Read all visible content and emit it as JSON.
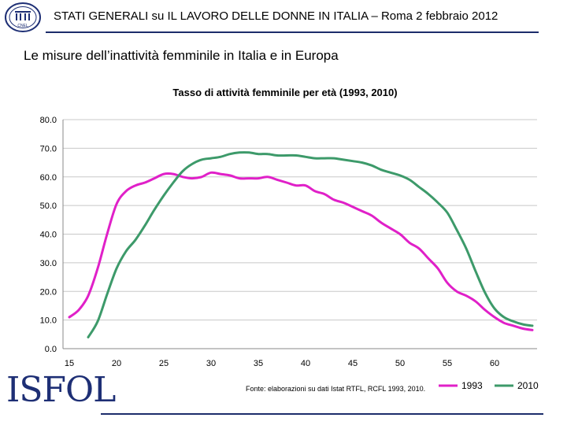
{
  "header": {
    "title": "STATI GENERALI su IL LAVORO DELLE DONNE IN ITALIA – Roma 2 febbraio 2012",
    "logo_text": "CNEL"
  },
  "subtitle": "Le misure dell’inattività femminile in Italia e in Europa",
  "footer": {
    "logo_text": "ISFOL",
    "brand_color": "#1e2f75"
  },
  "chart_data": {
    "type": "line",
    "title": "Tasso di attività femminile per età (1993, 2010)",
    "xlabel": "",
    "ylabel": "",
    "xlim": [
      15,
      64
    ],
    "ylim": [
      0,
      80
    ],
    "x_ticks": [
      15,
      20,
      25,
      30,
      35,
      40,
      45,
      50,
      55,
      60
    ],
    "y_ticks": [
      "0.0",
      "10.0",
      "20.0",
      "30.0",
      "40.0",
      "50.0",
      "60.0",
      "70.0",
      "80.0"
    ],
    "grid": "horizontal",
    "source": "Fonte: elaborazioni su dati Istat RTFL, RCFL 1993, 2010.",
    "legend_position": "bottom-right",
    "series": [
      {
        "name": "1993",
        "color": "#e020c8",
        "x": [
          15,
          16,
          17,
          18,
          19,
          20,
          21,
          22,
          23,
          24,
          25,
          26,
          27,
          28,
          29,
          30,
          31,
          32,
          33,
          34,
          35,
          36,
          37,
          38,
          39,
          40,
          41,
          42,
          43,
          44,
          45,
          46,
          47,
          48,
          49,
          50,
          51,
          52,
          53,
          54,
          55,
          56,
          57,
          58,
          59,
          60,
          61,
          62,
          63,
          64
        ],
        "y": [
          11.0,
          13.5,
          18.5,
          28.0,
          40.0,
          50.5,
          55.0,
          57.0,
          58.0,
          59.5,
          61.0,
          61.0,
          60.0,
          59.5,
          60.0,
          61.5,
          61.0,
          60.5,
          59.5,
          59.5,
          59.5,
          60.0,
          59.0,
          58.0,
          57.0,
          57.0,
          55.0,
          54.0,
          52.0,
          51.0,
          49.5,
          48.0,
          46.5,
          44.0,
          42.0,
          40.0,
          37.0,
          35.0,
          31.5,
          28.0,
          23.0,
          20.0,
          18.5,
          16.5,
          13.5,
          11.0,
          9.0,
          8.0,
          7.0,
          6.5
        ]
      },
      {
        "name": "2010",
        "color": "#3d9a6a",
        "x": [
          17,
          18,
          19,
          20,
          21,
          22,
          23,
          24,
          25,
          26,
          27,
          28,
          29,
          30,
          31,
          32,
          33,
          34,
          35,
          36,
          37,
          38,
          39,
          40,
          41,
          42,
          43,
          44,
          45,
          46,
          47,
          48,
          49,
          50,
          51,
          52,
          53,
          54,
          55,
          56,
          57,
          58,
          59,
          60,
          61,
          62,
          63,
          64
        ],
        "y": [
          4.0,
          9.5,
          19.0,
          28.0,
          34.0,
          38.0,
          43.0,
          48.5,
          53.5,
          58.0,
          62.0,
          64.5,
          66.0,
          66.5,
          67.0,
          68.0,
          68.5,
          68.5,
          68.0,
          68.0,
          67.5,
          67.5,
          67.5,
          67.0,
          66.5,
          66.5,
          66.5,
          66.0,
          65.5,
          65.0,
          64.0,
          62.5,
          61.5,
          60.5,
          59.0,
          56.5,
          54.0,
          51.0,
          47.5,
          41.5,
          35.0,
          27.0,
          19.5,
          14.0,
          11.0,
          9.5,
          8.5,
          8.0
        ]
      }
    ]
  }
}
